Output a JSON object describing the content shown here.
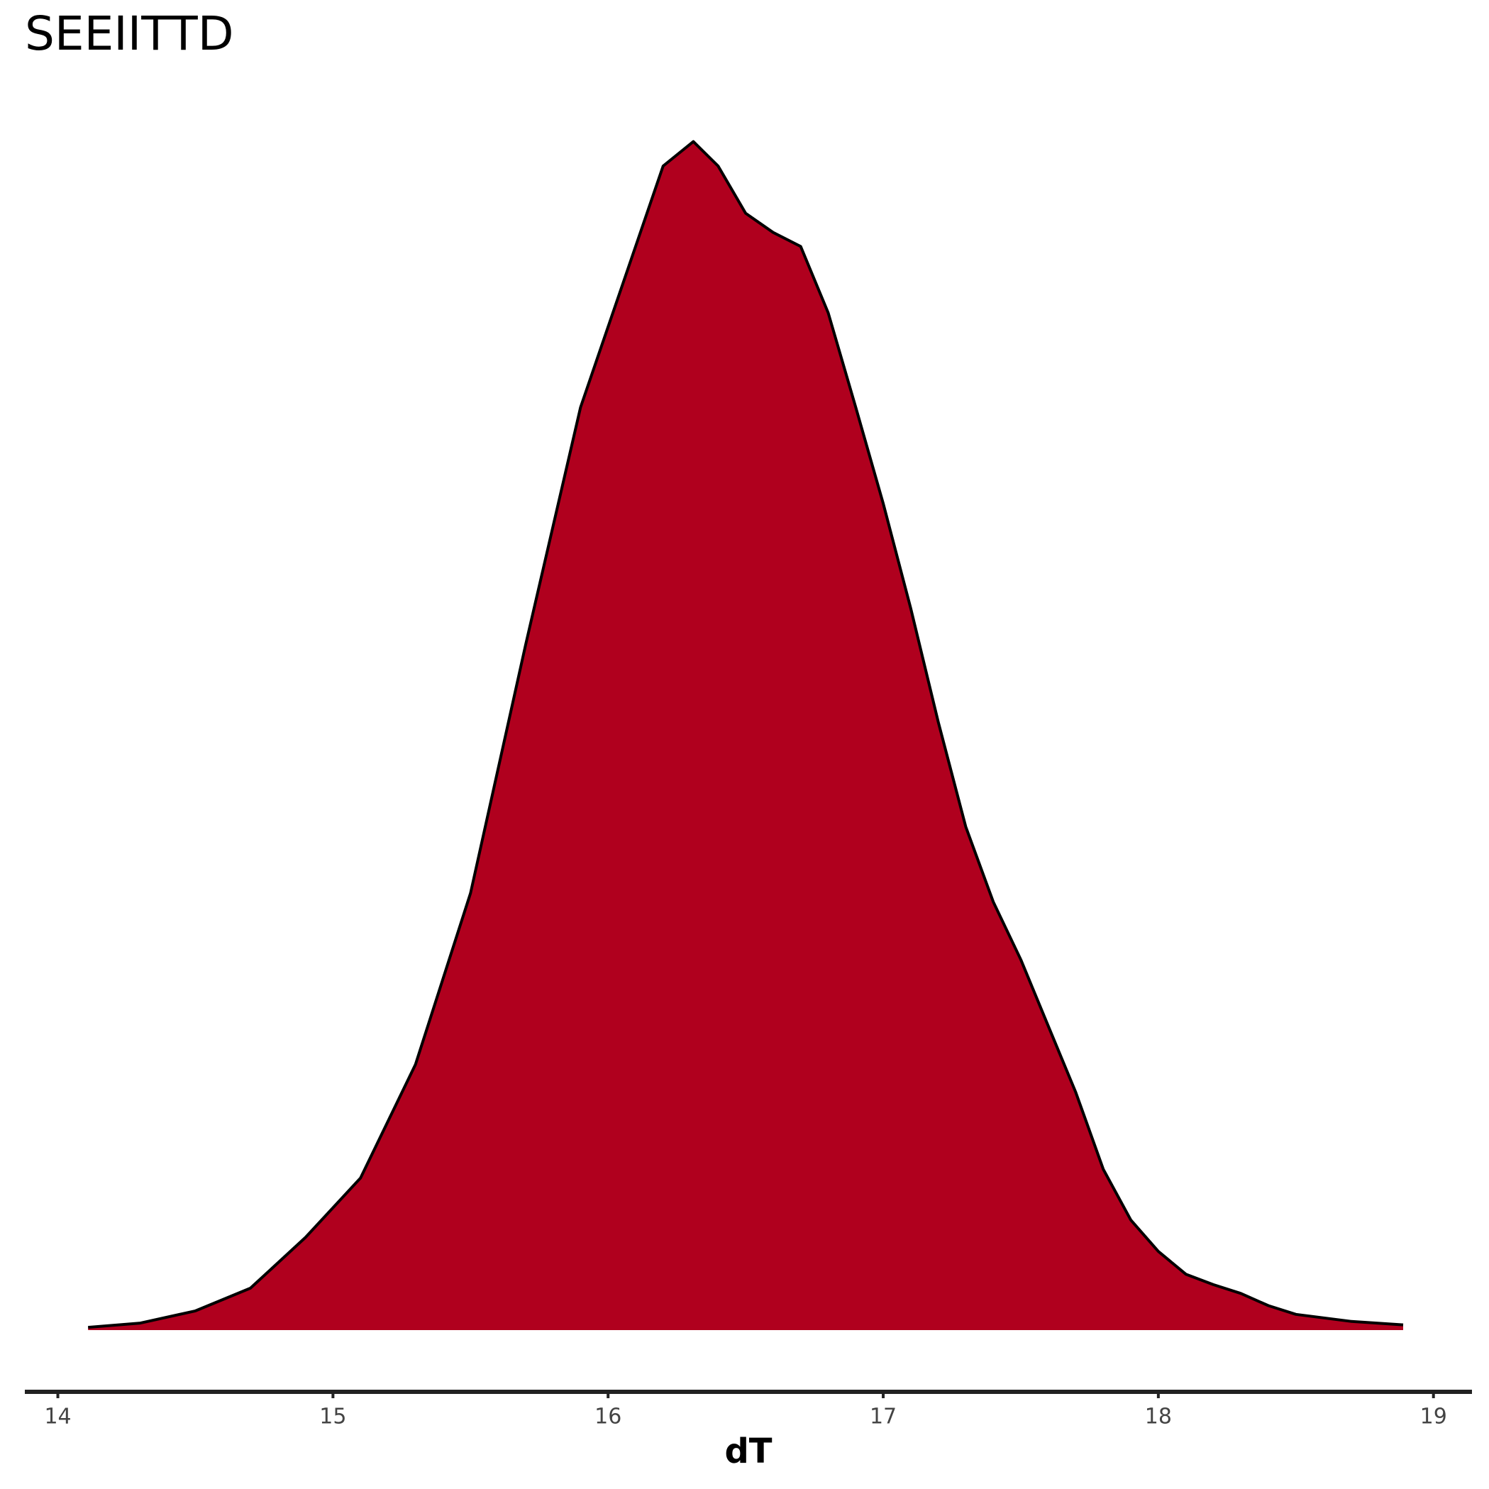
{
  "chart_data": {
    "type": "area",
    "title": "SEEIITTD",
    "x_label": "dT",
    "x": [
      14.11,
      14.3,
      14.5,
      14.7,
      14.9,
      15.1,
      15.3,
      15.5,
      15.7,
      15.9,
      16.1,
      16.2,
      16.31,
      16.4,
      16.5,
      16.6,
      16.7,
      16.8,
      16.9,
      17.0,
      17.1,
      17.2,
      17.3,
      17.4,
      17.5,
      17.6,
      17.7,
      17.8,
      17.9,
      18.0,
      18.1,
      18.2,
      18.3,
      18.4,
      18.5,
      18.7,
      18.89
    ],
    "values": [
      0.0016,
      0.004,
      0.011,
      0.024,
      0.053,
      0.087,
      0.152,
      0.25,
      0.392,
      0.528,
      0.62,
      0.666,
      0.68,
      0.666,
      0.639,
      0.628,
      0.62,
      0.582,
      0.528,
      0.473,
      0.413,
      0.348,
      0.288,
      0.245,
      0.212,
      0.174,
      0.136,
      0.092,
      0.063,
      0.045,
      0.032,
      0.026,
      0.021,
      0.014,
      0.009,
      0.005,
      0.003
    ],
    "color": "#b0001e",
    "line_color": "#000000",
    "xlim": [
      13.88,
      19.14
    ],
    "xticks": [
      14,
      15,
      16,
      17,
      18,
      19
    ],
    "ylim": [
      0,
      0.72
    ]
  }
}
